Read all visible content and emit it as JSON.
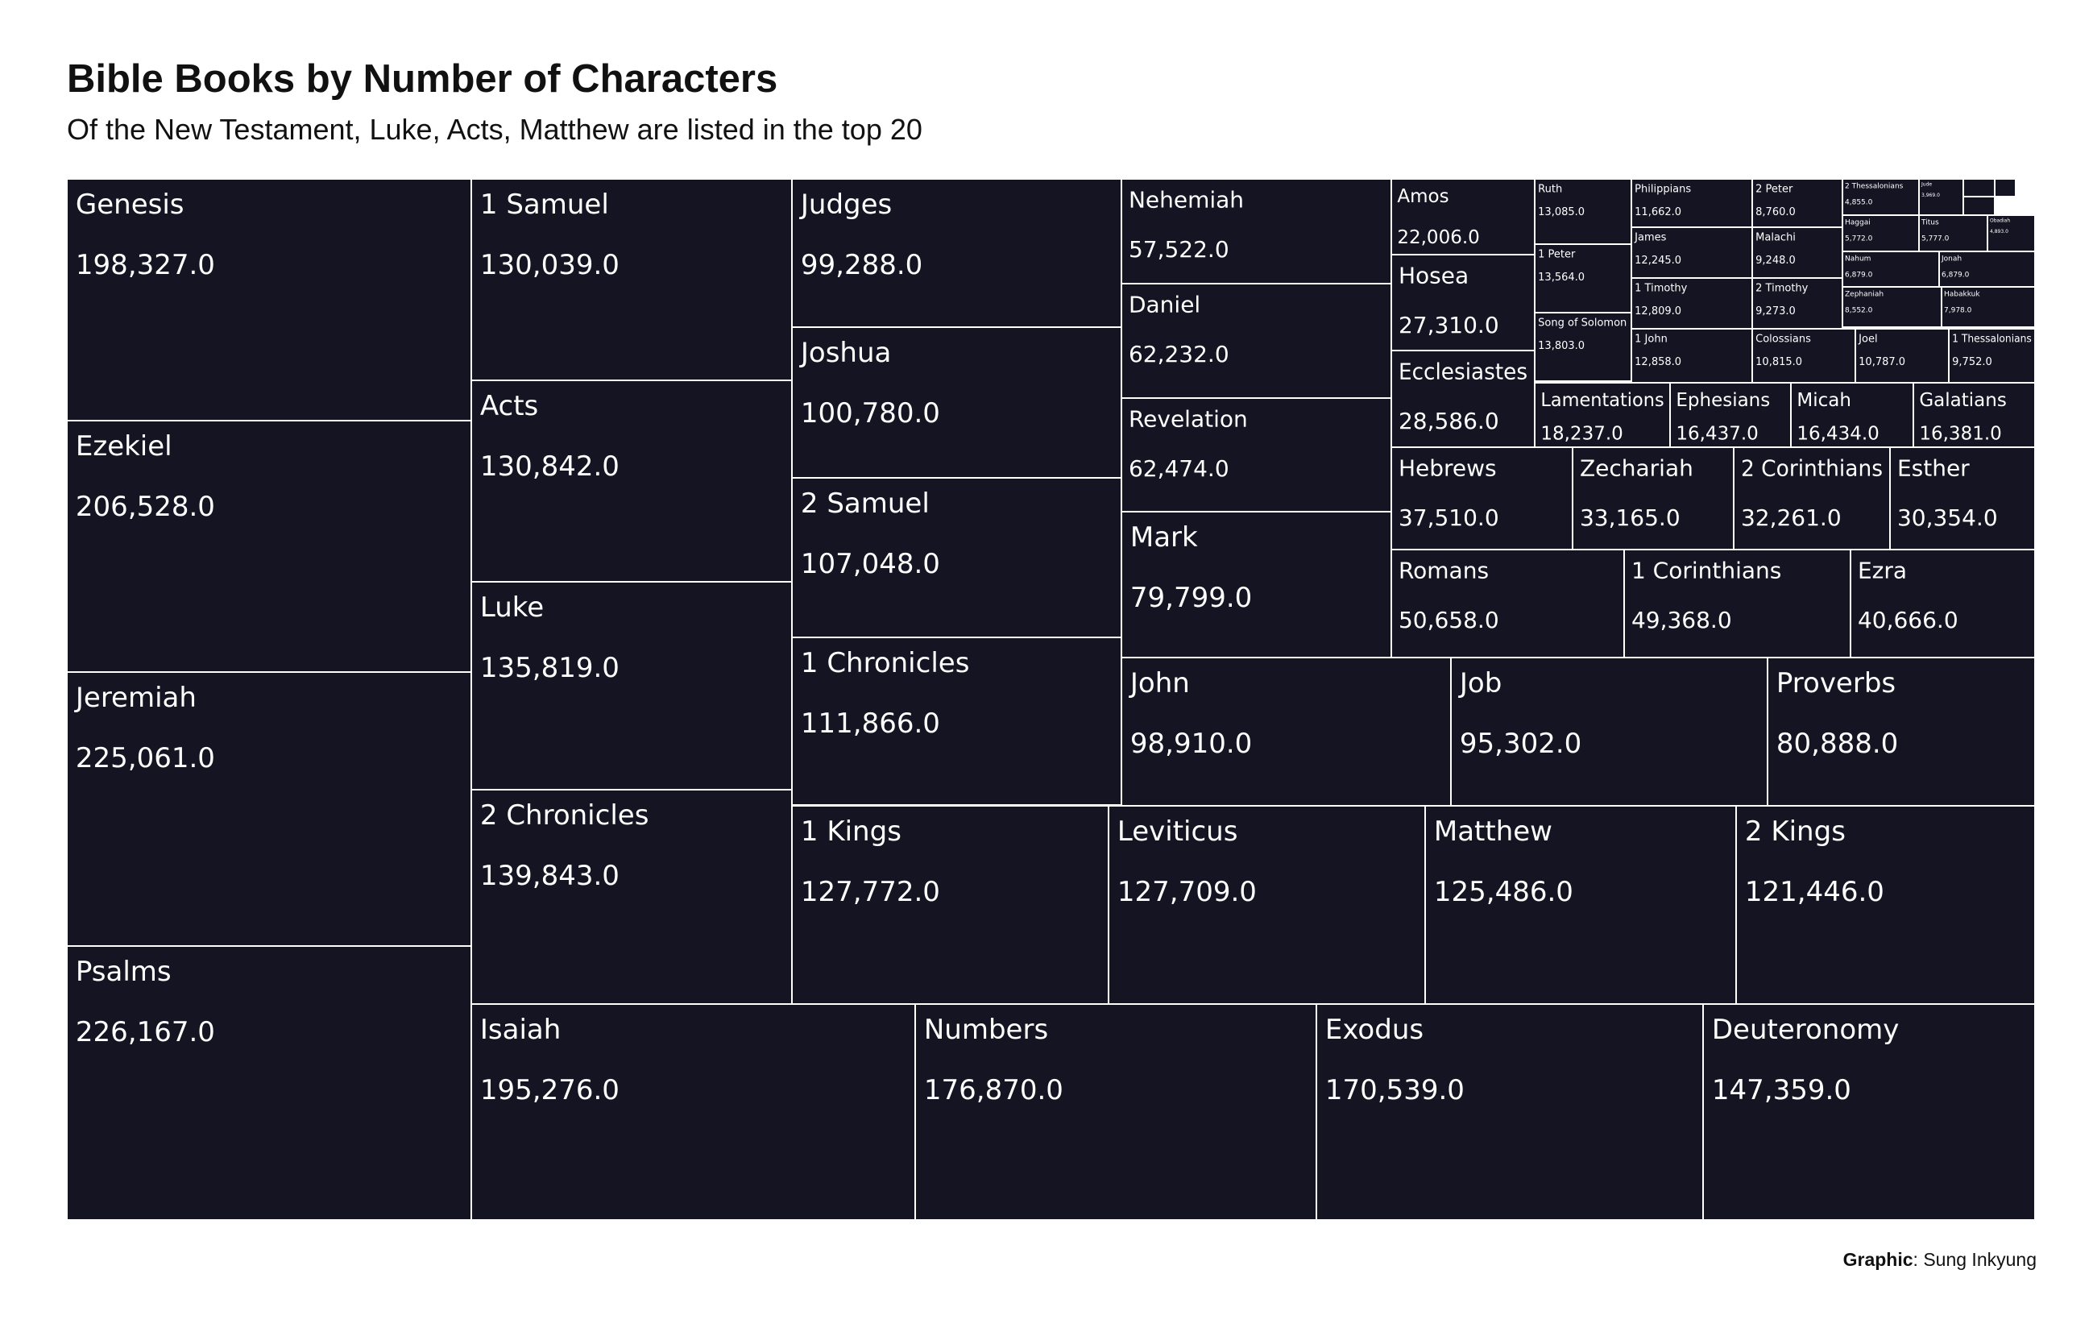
{
  "chart_data": {
    "type": "treemap",
    "title": "Bible Books by Number of Characters",
    "subtitle": "Of the New Testament, Luke, Acts, Matthew are listed in the top 20",
    "caption_label": "Graphic",
    "caption_text": ": Sung Inkyung",
    "tile_color": "#141422",
    "border_color": "#ffffff",
    "text_color": "#ffffff",
    "items": [
      {
        "name": "Genesis",
        "label": "198,327.0",
        "value": 198327
      },
      {
        "name": "Ezekiel",
        "label": "206,528.0",
        "value": 206528
      },
      {
        "name": "Jeremiah",
        "label": "225,061.0",
        "value": 225061
      },
      {
        "name": "Psalms",
        "label": "226,167.0",
        "value": 226167
      },
      {
        "name": "1 Samuel",
        "label": "130,039.0",
        "value": 130039
      },
      {
        "name": "Acts",
        "label": "130,842.0",
        "value": 130842
      },
      {
        "name": "Luke",
        "label": "135,819.0",
        "value": 135819
      },
      {
        "name": "2 Chronicles",
        "label": "139,843.0",
        "value": 139843
      },
      {
        "name": "Judges",
        "label": "99,288.0",
        "value": 99288
      },
      {
        "name": "Joshua",
        "label": "100,780.0",
        "value": 100780
      },
      {
        "name": "2 Samuel",
        "label": "107,048.0",
        "value": 107048
      },
      {
        "name": "1 Chronicles",
        "label": "111,866.0",
        "value": 111866
      },
      {
        "name": "Nehemiah",
        "label": "57,522.0",
        "value": 57522
      },
      {
        "name": "Daniel",
        "label": "62,232.0",
        "value": 62232
      },
      {
        "name": "Revelation",
        "label": "62,474.0",
        "value": 62474
      },
      {
        "name": "Mark",
        "label": "79,799.0",
        "value": 79799
      },
      {
        "name": "Amos",
        "label": "22,006.0",
        "value": 22006
      },
      {
        "name": "Hosea",
        "label": "27,310.0",
        "value": 27310
      },
      {
        "name": "Ecclesiastes",
        "label": "28,586.0",
        "value": 28586
      },
      {
        "name": "Ruth",
        "label": "13,085.0",
        "value": 13085
      },
      {
        "name": "1 Peter",
        "label": "13,564.0",
        "value": 13564
      },
      {
        "name": "Song of Solomon",
        "label": "13,803.0",
        "value": 13803
      },
      {
        "name": "Philippians",
        "label": "11,662.0",
        "value": 11662
      },
      {
        "name": "James",
        "label": "12,245.0",
        "value": 12245
      },
      {
        "name": "1 Timothy",
        "label": "12,809.0",
        "value": 12809
      },
      {
        "name": "1 John",
        "label": "12,858.0",
        "value": 12858
      },
      {
        "name": "2 Peter",
        "label": "8,760.0",
        "value": 8760
      },
      {
        "name": "Malachi",
        "label": "9,248.0",
        "value": 9248
      },
      {
        "name": "2 Timothy",
        "label": "9,273.0",
        "value": 9273
      },
      {
        "name": "2 Thessalonians",
        "label": "4,855.0",
        "value": 4855
      },
      {
        "name": "Jude",
        "label": "3,969.0",
        "value": 3969
      },
      {
        "name": "Haggai",
        "label": "5,772.0",
        "value": 5772
      },
      {
        "name": "Titus",
        "label": "5,777.0",
        "value": 5777
      },
      {
        "name": "Obadiah",
        "label": "4,893.0",
        "value": 4893
      },
      {
        "name": "Nahum",
        "label": "6,879.0",
        "value": 6879
      },
      {
        "name": "Jonah",
        "label": "6,879.0",
        "value": 6879
      },
      {
        "name": "Zephaniah",
        "label": "8,552.0",
        "value": 8552
      },
      {
        "name": "Habakkuk",
        "label": "7,978.0",
        "value": 7978
      },
      {
        "name": "Colossians",
        "label": "10,815.0",
        "value": 10815
      },
      {
        "name": "Joel",
        "label": "10,787.0",
        "value": 10787
      },
      {
        "name": "1 Thessalonians",
        "label": "9,752.0",
        "value": 9752
      },
      {
        "name": "Lamentations",
        "label": "18,237.0",
        "value": 18237
      },
      {
        "name": "Ephesians",
        "label": "16,437.0",
        "value": 16437
      },
      {
        "name": "Micah",
        "label": "16,434.0",
        "value": 16434
      },
      {
        "name": "Galatians",
        "label": "16,381.0",
        "value": 16381
      },
      {
        "name": "Hebrews",
        "label": "37,510.0",
        "value": 37510
      },
      {
        "name": "Zechariah",
        "label": "33,165.0",
        "value": 33165
      },
      {
        "name": "2 Corinthians",
        "label": "32,261.0",
        "value": 32261
      },
      {
        "name": "Esther",
        "label": "30,354.0",
        "value": 30354
      },
      {
        "name": "Romans",
        "label": "50,658.0",
        "value": 50658
      },
      {
        "name": "1 Corinthians",
        "label": "49,368.0",
        "value": 49368
      },
      {
        "name": "Ezra",
        "label": "40,666.0",
        "value": 40666
      },
      {
        "name": "John",
        "label": "98,910.0",
        "value": 98910
      },
      {
        "name": "Job",
        "label": "95,302.0",
        "value": 95302
      },
      {
        "name": "Proverbs",
        "label": "80,888.0",
        "value": 80888
      },
      {
        "name": "1 Kings",
        "label": "127,772.0",
        "value": 127772
      },
      {
        "name": "Leviticus",
        "label": "127,709.0",
        "value": 127709
      },
      {
        "name": "Matthew",
        "label": "125,486.0",
        "value": 125486
      },
      {
        "name": "2 Kings",
        "label": "121,446.0",
        "value": 121446
      },
      {
        "name": "Isaiah",
        "label": "195,276.0",
        "value": 195276
      },
      {
        "name": "Numbers",
        "label": "176,870.0",
        "value": 176870
      },
      {
        "name": "Exodus",
        "label": "170,539.0",
        "value": 170539
      },
      {
        "name": "Deuteronomy",
        "label": "147,359.0",
        "value": 147359
      },
      {
        "name": "",
        "label": "",
        "value": 3000
      },
      {
        "name": "",
        "label": "",
        "value": 2800
      },
      {
        "name": "",
        "label": "",
        "value": 2600
      }
    ]
  }
}
